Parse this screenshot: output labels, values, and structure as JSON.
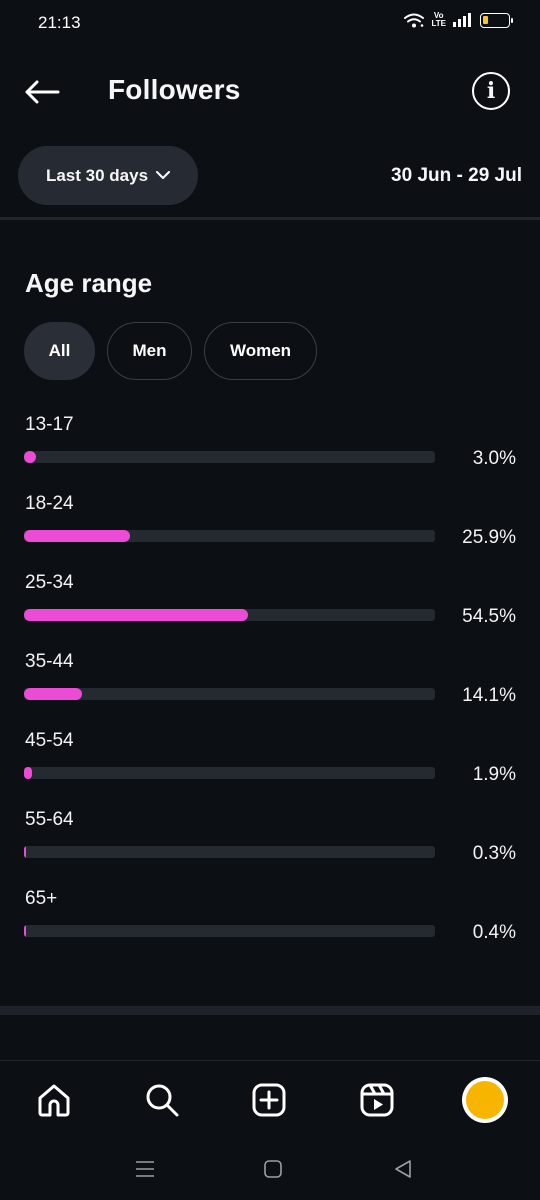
{
  "status_bar": {
    "time": "21:13",
    "volte": "Vo LTE",
    "battery_color": "#f7c52b"
  },
  "header": {
    "title": "Followers",
    "back_icon": "arrow-left-icon",
    "info_icon": "info-icon",
    "info_glyph": "i"
  },
  "filter": {
    "range_label": "Last 30 days",
    "date_range": "30 Jun - 29 Jul"
  },
  "age_range": {
    "title": "Age range",
    "segments": [
      {
        "label": "All",
        "active": true
      },
      {
        "label": "Men",
        "active": false
      },
      {
        "label": "Women",
        "active": false
      }
    ],
    "bar_color": "#ec4bd6",
    "rows": [
      {
        "label": "13-17",
        "percent": 3.0,
        "value_text": "3.0%"
      },
      {
        "label": "18-24",
        "percent": 25.9,
        "value_text": "25.9%"
      },
      {
        "label": "25-34",
        "percent": 54.5,
        "value_text": "54.5%"
      },
      {
        "label": "35-44",
        "percent": 14.1,
        "value_text": "14.1%"
      },
      {
        "label": "45-54",
        "percent": 1.9,
        "value_text": "1.9%"
      },
      {
        "label": "55-64",
        "percent": 0.3,
        "value_text": "0.3%"
      },
      {
        "label": "65+",
        "percent": 0.4,
        "value_text": "0.4%"
      }
    ]
  },
  "bottom_nav": {
    "items": [
      "home-icon",
      "search-icon",
      "create-icon",
      "reels-icon",
      "profile-avatar"
    ]
  },
  "system_nav": {
    "items": [
      "menu-icon",
      "home-square-icon",
      "back-triangle-icon"
    ]
  }
}
